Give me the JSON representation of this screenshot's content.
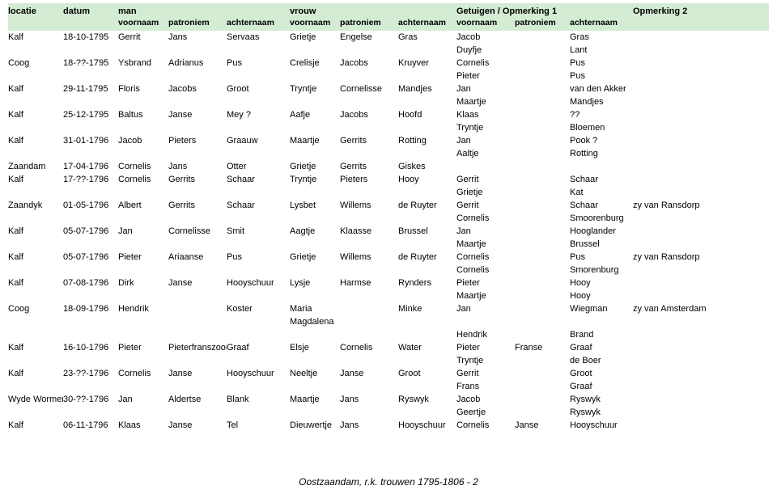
{
  "header": {
    "locatie": "locatie",
    "datum": "datum",
    "man": "man",
    "vrouw": "vrouw",
    "getuigen": "Getuigen / Opmerking 1",
    "opm2": "Opmerking 2",
    "voornaam": "voornaam",
    "patroniem": "patroniem",
    "achternaam": "achternaam"
  },
  "footer": "Oostzaandam, r.k. trouwen 1795-1806 - 2",
  "rows": [
    [
      "Kalf",
      "18-10-1795",
      "Gerrit",
      "Jans",
      "Servaas",
      "Grietje",
      "Engelse",
      "Gras",
      "Jacob",
      "",
      "Gras",
      ""
    ],
    [
      "",
      "",
      "",
      "",
      "",
      "",
      "",
      "",
      "Duyfje",
      "",
      "Lant",
      ""
    ],
    [
      "Coog",
      "18-??-1795",
      "Ysbrand",
      "Adrianus",
      "Pus",
      "Crelisje",
      "Jacobs",
      "Kruyver",
      "Cornelis",
      "",
      "Pus",
      ""
    ],
    [
      "",
      "",
      "",
      "",
      "",
      "",
      "",
      "",
      "Pieter",
      "",
      "Pus",
      ""
    ],
    [
      "Kalf",
      "29-11-1795",
      "Floris",
      "Jacobs",
      "Groot",
      "Tryntje",
      "Cornelisse",
      "Mandjes",
      "Jan",
      "",
      "van den Akker",
      ""
    ],
    [
      "",
      "",
      "",
      "",
      "",
      "",
      "",
      "",
      "Maartje",
      "",
      "Mandjes",
      ""
    ],
    [
      "Kalf",
      "25-12-1795",
      "Baltus",
      "Janse",
      "Mey ?",
      "Aafje",
      "Jacobs",
      "Hoofd",
      "Klaas",
      "",
      "??",
      ""
    ],
    [
      "",
      "",
      "",
      "",
      "",
      "",
      "",
      "",
      "Tryntje",
      "",
      "Bloemen",
      ""
    ],
    [
      "Kalf",
      "31-01-1796",
      "Jacob",
      "Pieters",
      "Graauw",
      "Maartje",
      "Gerrits",
      "Rotting",
      "Jan",
      "",
      "Pook ?",
      ""
    ],
    [
      "",
      "",
      "",
      "",
      "",
      "",
      "",
      "",
      "Aaltje",
      "",
      "Rotting",
      ""
    ],
    [
      "Zaandam",
      "17-04-1796",
      "Cornelis",
      "Jans",
      "Otter",
      "Grietje",
      "Gerrits",
      "Giskes",
      "",
      "",
      "",
      ""
    ],
    [
      "Kalf",
      "17-??-1796",
      "Cornelis",
      "Gerrits",
      "Schaar",
      "Tryntje",
      "Pieters",
      "Hooy",
      "Gerrit",
      "",
      "Schaar",
      ""
    ],
    [
      "",
      "",
      "",
      "",
      "",
      "",
      "",
      "",
      "Grietje",
      "",
      "Kat",
      ""
    ],
    [
      "Zaandyk",
      "01-05-1796",
      "Albert",
      "Gerrits",
      "Schaar",
      "Lysbet",
      "Willems",
      "de Ruyter",
      "Gerrit",
      "",
      "Schaar",
      "zy van Ransdorp"
    ],
    [
      "",
      "",
      "",
      "",
      "",
      "",
      "",
      "",
      "Cornelis",
      "",
      "Smoorenburg",
      ""
    ],
    [
      "Kalf",
      "05-07-1796",
      "Jan",
      "Cornelisse",
      "Smit",
      "Aagtje",
      "Klaasse",
      "Brussel",
      "Jan",
      "",
      "Hooglander",
      ""
    ],
    [
      "",
      "",
      "",
      "",
      "",
      "",
      "",
      "",
      "Maartje",
      "",
      "Brussel",
      ""
    ],
    [
      "Kalf",
      "05-07-1796",
      "Pieter",
      "Ariaanse",
      "Pus",
      "Grietje",
      "Willems",
      "de Ruyter",
      "Cornelis",
      "",
      "Pus",
      "zy van Ransdorp"
    ],
    [
      "",
      "",
      "",
      "",
      "",
      "",
      "",
      "",
      "Cornelis",
      "",
      "Smorenburg",
      ""
    ],
    [
      "Kalf",
      "07-08-1796",
      "Dirk",
      "Janse",
      "Hooyschuur",
      "Lysje",
      "Harmse",
      "Rynders",
      "Pieter",
      "",
      "Hooy",
      ""
    ],
    [
      "",
      "",
      "",
      "",
      "",
      "",
      "",
      "",
      "Maartje",
      "",
      "Hooy",
      ""
    ],
    [
      "Coog",
      "18-09-1796",
      "Hendrik",
      "",
      "Koster",
      "Maria",
      "",
      "Minke",
      "Jan",
      "",
      "Wiegman",
      "zy van Amsterdam"
    ],
    [
      "",
      "",
      "",
      "",
      "",
      "Magdalena",
      "",
      "",
      "",
      "",
      "",
      ""
    ],
    [
      "",
      "",
      "",
      "",
      "",
      "",
      "",
      "",
      "Hendrik",
      "",
      "Brand",
      ""
    ],
    [
      "Kalf",
      "16-10-1796",
      "Pieter",
      "Pieterfranszoon",
      "Graaf",
      "Elsje",
      "Cornelis",
      "Water",
      "Pieter",
      "Franse",
      "Graaf",
      ""
    ],
    [
      "",
      "",
      "",
      "",
      "",
      "",
      "",
      "",
      "Tryntje",
      "",
      "de Boer",
      ""
    ],
    [
      "Kalf",
      "23-??-1796",
      "Cornelis",
      "Janse",
      "Hooyschuur",
      "Neeltje",
      "Janse",
      "Groot",
      "Gerrit",
      "",
      "Groot",
      ""
    ],
    [
      "",
      "",
      "",
      "",
      "",
      "",
      "",
      "",
      "Frans",
      "",
      "Graaf",
      ""
    ],
    [
      "Wyde Wormer",
      "30-??-1796",
      "Jan",
      "Aldertse",
      "Blank",
      "Maartje",
      "Jans",
      "Ryswyk",
      "Jacob",
      "",
      "Ryswyk",
      ""
    ],
    [
      "",
      "",
      "",
      "",
      "",
      "",
      "",
      "",
      "Geertje",
      "",
      "Ryswyk",
      ""
    ],
    [
      "Kalf",
      "06-11-1796",
      "Klaas",
      "Janse",
      "Tel",
      "Dieuwertje",
      "Jans",
      "Hooyschuur",
      "Cornelis",
      "Janse",
      "Hooyschuur",
      ""
    ]
  ]
}
